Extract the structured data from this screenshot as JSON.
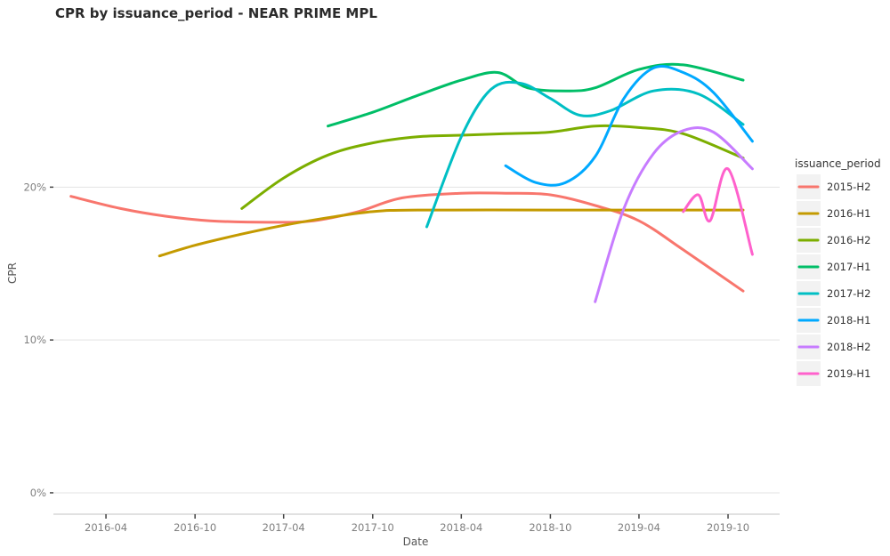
{
  "chart_data": {
    "type": "line",
    "title": "CPR by issuance_period - NEAR PRIME MPL",
    "xlabel": "Date",
    "ylabel": "CPR",
    "x_ticks": [
      "2016-04",
      "2016-10",
      "2017-04",
      "2017-10",
      "2018-04",
      "2018-10",
      "2019-04",
      "2019-10"
    ],
    "y_ticks": [
      "0%",
      "10%",
      "20%"
    ],
    "xlim": [
      "2015-12-15",
      "2020-01-15"
    ],
    "ylim": [
      -0.014,
      0.305
    ],
    "grid": true,
    "legend_title": "issuance_period",
    "legend_position": "right",
    "series": [
      {
        "name": "2015-H2",
        "color": "#F8766D",
        "points": [
          [
            "2016-01-20",
            0.194
          ],
          [
            "2016-05-01",
            0.186
          ],
          [
            "2016-08-01",
            0.181
          ],
          [
            "2016-11-01",
            0.178
          ],
          [
            "2017-03-01",
            0.177
          ],
          [
            "2017-06-01",
            0.178
          ],
          [
            "2017-09-01",
            0.184
          ],
          [
            "2017-12-01",
            0.193
          ],
          [
            "2018-04-01",
            0.196
          ],
          [
            "2018-07-01",
            0.196
          ],
          [
            "2018-10-01",
            0.195
          ],
          [
            "2019-01-01",
            0.188
          ],
          [
            "2019-04-01",
            0.178
          ],
          [
            "2019-07-01",
            0.159
          ],
          [
            "2019-11-01",
            0.132
          ]
        ]
      },
      {
        "name": "2016-H1",
        "color": "#C49A00",
        "points": [
          [
            "2016-07-20",
            0.155
          ],
          [
            "2016-10-01",
            0.162
          ],
          [
            "2017-01-01",
            0.169
          ],
          [
            "2017-04-01",
            0.175
          ],
          [
            "2017-07-01",
            0.18
          ],
          [
            "2017-10-01",
            0.184
          ],
          [
            "2018-01-01",
            0.185
          ],
          [
            "2018-10-01",
            0.185
          ],
          [
            "2019-04-01",
            0.185
          ],
          [
            "2019-10-01",
            0.185
          ],
          [
            "2019-11-01",
            0.185
          ]
        ]
      },
      {
        "name": "2016-H2",
        "color": "#7CAE00",
        "points": [
          [
            "2017-01-05",
            0.186
          ],
          [
            "2017-04-01",
            0.206
          ],
          [
            "2017-07-01",
            0.221
          ],
          [
            "2017-10-01",
            0.229
          ],
          [
            "2018-01-01",
            0.233
          ],
          [
            "2018-04-01",
            0.234
          ],
          [
            "2018-07-01",
            0.235
          ],
          [
            "2018-10-01",
            0.236
          ],
          [
            "2019-01-01",
            0.24
          ],
          [
            "2019-04-01",
            0.239
          ],
          [
            "2019-07-01",
            0.235
          ],
          [
            "2019-11-01",
            0.219
          ]
        ]
      },
      {
        "name": "2017-H1",
        "color": "#00BE67",
        "points": [
          [
            "2017-07-01",
            0.24
          ],
          [
            "2017-10-01",
            0.249
          ],
          [
            "2018-01-01",
            0.26
          ],
          [
            "2018-04-01",
            0.27
          ],
          [
            "2018-06-15",
            0.275
          ],
          [
            "2018-08-15",
            0.265
          ],
          [
            "2018-11-01",
            0.263
          ],
          [
            "2019-01-01",
            0.265
          ],
          [
            "2019-04-01",
            0.277
          ],
          [
            "2019-07-01",
            0.28
          ],
          [
            "2019-11-01",
            0.27
          ]
        ]
      },
      {
        "name": "2017-H2",
        "color": "#00BFC4",
        "points": [
          [
            "2018-01-20",
            0.174
          ],
          [
            "2018-04-01",
            0.233
          ],
          [
            "2018-06-01",
            0.264
          ],
          [
            "2018-08-01",
            0.268
          ],
          [
            "2018-10-01",
            0.258
          ],
          [
            "2018-12-01",
            0.247
          ],
          [
            "2019-02-01",
            0.25
          ],
          [
            "2019-05-01",
            0.263
          ],
          [
            "2019-08-01",
            0.261
          ],
          [
            "2019-11-01",
            0.241
          ]
        ]
      },
      {
        "name": "2018-H1",
        "color": "#00A9FF",
        "points": [
          [
            "2018-07-01",
            0.214
          ],
          [
            "2018-09-01",
            0.203
          ],
          [
            "2018-11-01",
            0.203
          ],
          [
            "2019-01-01",
            0.22
          ],
          [
            "2019-03-01",
            0.258
          ],
          [
            "2019-05-01",
            0.278
          ],
          [
            "2019-07-01",
            0.275
          ],
          [
            "2019-09-01",
            0.262
          ],
          [
            "2019-11-20",
            0.23
          ]
        ]
      },
      {
        "name": "2018-H2",
        "color": "#C77CFF",
        "points": [
          [
            "2019-01-01",
            0.125
          ],
          [
            "2019-03-01",
            0.186
          ],
          [
            "2019-05-01",
            0.222
          ],
          [
            "2019-07-01",
            0.237
          ],
          [
            "2019-09-01",
            0.236
          ],
          [
            "2019-11-20",
            0.212
          ]
        ]
      },
      {
        "name": "2019-H1",
        "color": "#FF61CC",
        "points": [
          [
            "2019-07-01",
            0.184
          ],
          [
            "2019-08-01",
            0.195
          ],
          [
            "2019-08-25",
            0.178
          ],
          [
            "2019-10-01",
            0.212
          ],
          [
            "2019-11-20",
            0.156
          ]
        ]
      }
    ]
  }
}
